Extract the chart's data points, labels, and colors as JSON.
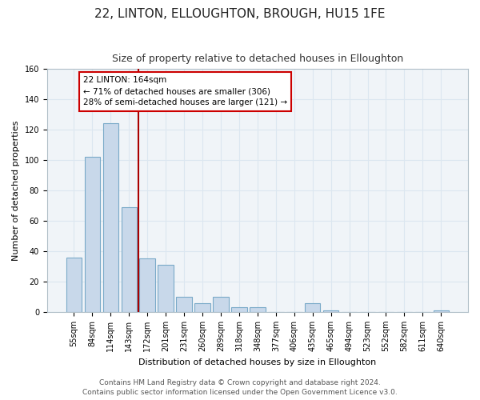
{
  "title": "22, LINTON, ELLOUGHTON, BROUGH, HU15 1FE",
  "subtitle": "Size of property relative to detached houses in Elloughton",
  "xlabel": "Distribution of detached houses by size in Elloughton",
  "ylabel": "Number of detached properties",
  "bar_labels": [
    "55sqm",
    "84sqm",
    "114sqm",
    "143sqm",
    "172sqm",
    "201sqm",
    "231sqm",
    "260sqm",
    "289sqm",
    "318sqm",
    "348sqm",
    "377sqm",
    "406sqm",
    "435sqm",
    "465sqm",
    "494sqm",
    "523sqm",
    "552sqm",
    "582sqm",
    "611sqm",
    "640sqm"
  ],
  "bar_values": [
    36,
    102,
    124,
    69,
    35,
    31,
    10,
    6,
    10,
    3,
    3,
    0,
    0,
    6,
    1,
    0,
    0,
    0,
    0,
    0,
    1
  ],
  "bar_color": "#c8d8ea",
  "bar_edge_color": "#7aaac8",
  "vline_index": 4,
  "vline_color": "#aa0000",
  "annotation_line1": "22 LINTON: 164sqm",
  "annotation_line2": "← 71% of detached houses are smaller (306)",
  "annotation_line3": "28% of semi-detached houses are larger (121) →",
  "annotation_box_color": "#ffffff",
  "annotation_box_edge": "#cc0000",
  "ylim": [
    0,
    160
  ],
  "yticks": [
    0,
    20,
    40,
    60,
    80,
    100,
    120,
    140,
    160
  ],
  "grid_color": "#dce6f0",
  "bg_color": "#f0f4f8",
  "footer_line1": "Contains HM Land Registry data © Crown copyright and database right 2024.",
  "footer_line2": "Contains public sector information licensed under the Open Government Licence v3.0.",
  "title_fontsize": 11,
  "subtitle_fontsize": 9,
  "axis_label_fontsize": 8,
  "tick_fontsize": 7,
  "footer_fontsize": 6.5
}
